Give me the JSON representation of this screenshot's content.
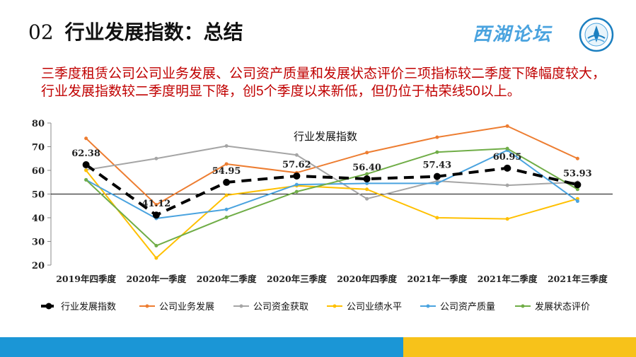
{
  "header": {
    "number": "02",
    "title": "行业发展指数：总结",
    "logo_text": "西湖论坛"
  },
  "summary": {
    "part1": "三季度租赁公司公司业务发展、公司资产质量和发展状态评价三项指标较二季度下降幅度较大，行业发展指数较二季度明显下降，创",
    "highlight_num": "5",
    "part2": "个季度以来新低，但仍位于枯荣线",
    "highlight_num2": "50",
    "part3": "以上。"
  },
  "chart_data": {
    "type": "line",
    "title": "行业发展指数",
    "ylim": [
      20,
      80
    ],
    "yticks": [
      "20",
      "30",
      "40",
      "50",
      "60",
      "70",
      "80"
    ],
    "reference_line": 50,
    "categories": [
      "2019年四季度",
      "2020年一季度",
      "2020年二季度",
      "2020年三季度",
      "2020年四季度",
      "2021年一季度",
      "2021年二季度",
      "2021年三季度"
    ],
    "series": [
      {
        "name": "行业发展指数",
        "color": "#000000",
        "dashed": true,
        "values": [
          62.38,
          41.12,
          54.95,
          57.62,
          56.4,
          57.43,
          60.95,
          53.93
        ],
        "labels": [
          "62.38",
          "41.12",
          "54.95",
          "57.62",
          "56.40",
          "57.43",
          "60.95",
          "53.93"
        ]
      },
      {
        "name": "公司业务发展",
        "color": "#ed7d31",
        "values": [
          73.5,
          45.5,
          62.7,
          59.0,
          67.5,
          74.0,
          78.7,
          65.0
        ]
      },
      {
        "name": "公司资金获取",
        "color": "#a5a5a5",
        "values": [
          60.2,
          65.0,
          70.3,
          66.5,
          48.0,
          55.5,
          53.7,
          55.0
        ]
      },
      {
        "name": "公司业绩水平",
        "color": "#ffc000",
        "values": [
          60.0,
          23.0,
          49.5,
          53.5,
          52.0,
          40.0,
          39.5,
          48.0
        ]
      },
      {
        "name": "公司资产质量",
        "color": "#4aa3df",
        "values": [
          56.0,
          39.7,
          43.5,
          54.0,
          54.5,
          54.5,
          68.5,
          47.0
        ]
      },
      {
        "name": "发展状态评价",
        "color": "#70ad47",
        "values": [
          56.0,
          28.2,
          40.2,
          51.0,
          58.5,
          67.7,
          69.2,
          52.0
        ]
      }
    ],
    "legend_position": "bottom",
    "grid": false
  }
}
